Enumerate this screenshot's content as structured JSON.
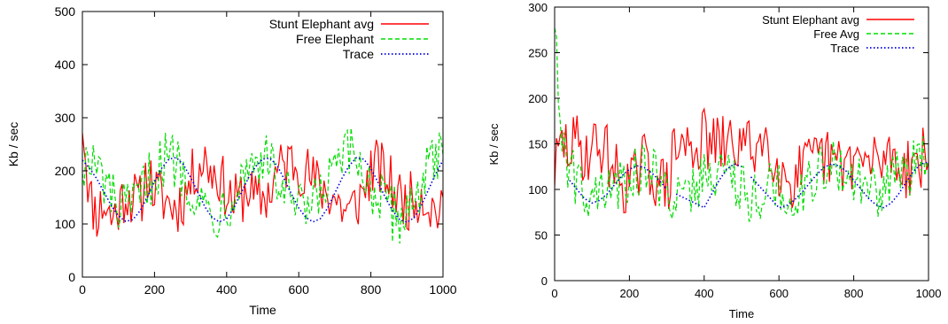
{
  "chart_data": [
    {
      "type": "line",
      "title": "",
      "xlabel": "Time",
      "ylabel": "Kb / sec",
      "xlim": [
        0,
        1000
      ],
      "ylim": [
        0,
        500
      ],
      "xticks": [
        0,
        200,
        400,
        600,
        800,
        1000
      ],
      "yticks": [
        0,
        100,
        200,
        300,
        400,
        500
      ],
      "grid": false,
      "legend_position": "top-right",
      "series": [
        {
          "name": "Stunt Elephant avg",
          "color": "#ff0000",
          "style": "solid",
          "x": [
            0,
            20,
            40,
            60,
            80,
            100,
            120,
            140,
            160,
            180,
            200,
            220,
            240,
            260,
            280,
            300,
            320,
            340,
            360,
            380,
            400,
            420,
            440,
            460,
            480,
            500,
            520,
            540,
            560,
            580,
            600,
            620,
            640,
            660,
            680,
            700,
            720,
            740,
            760,
            780,
            800,
            820,
            840,
            860,
            880,
            900,
            920,
            940,
            960,
            980,
            1000
          ],
          "y": [
            300,
            150,
            120,
            140,
            110,
            130,
            160,
            150,
            140,
            200,
            160,
            150,
            140,
            130,
            150,
            180,
            210,
            220,
            200,
            190,
            160,
            140,
            150,
            170,
            140,
            150,
            160,
            200,
            210,
            220,
            210,
            200,
            180,
            170,
            160,
            150,
            130,
            120,
            140,
            160,
            200,
            210,
            190,
            170,
            150,
            140,
            150,
            160,
            140,
            120,
            150
          ],
          "spread": 55
        },
        {
          "name": "Free Elephant",
          "color": "#00dd00",
          "style": "dashed",
          "x": [
            0,
            20,
            40,
            60,
            80,
            100,
            120,
            140,
            160,
            180,
            200,
            220,
            240,
            260,
            280,
            300,
            320,
            340,
            360,
            380,
            400,
            420,
            440,
            460,
            480,
            500,
            520,
            540,
            560,
            580,
            600,
            620,
            640,
            660,
            680,
            700,
            720,
            740,
            760,
            780,
            800,
            820,
            840,
            860,
            880,
            900,
            920,
            940,
            960,
            980,
            1000
          ],
          "y": [
            220,
            210,
            200,
            180,
            150,
            130,
            120,
            130,
            150,
            180,
            200,
            215,
            225,
            220,
            200,
            175,
            150,
            130,
            120,
            125,
            140,
            165,
            190,
            210,
            222,
            225,
            210,
            185,
            160,
            140,
            125,
            120,
            130,
            150,
            175,
            200,
            220,
            228,
            220,
            200,
            170,
            150,
            130,
            120,
            115,
            125,
            150,
            180,
            200,
            215,
            230
          ],
          "spread": 55
        },
        {
          "name": "Trace",
          "color": "#0000dd",
          "style": "dotted",
          "x": [
            0,
            20,
            40,
            60,
            80,
            100,
            120,
            140,
            160,
            180,
            200,
            220,
            240,
            260,
            280,
            300,
            320,
            340,
            360,
            380,
            400,
            420,
            440,
            460,
            480,
            500,
            520,
            540,
            560,
            580,
            600,
            620,
            640,
            660,
            680,
            700,
            720,
            740,
            760,
            780,
            800,
            820,
            840,
            860,
            880,
            900,
            920,
            940,
            960,
            980,
            1000
          ],
          "y": [
            220,
            205,
            185,
            160,
            135,
            115,
            105,
            108,
            125,
            150,
            180,
            205,
            222,
            225,
            212,
            188,
            160,
            132,
            112,
            104,
            110,
            130,
            158,
            186,
            208,
            222,
            224,
            210,
            184,
            156,
            130,
            112,
            104,
            110,
            130,
            158,
            186,
            210,
            225,
            222,
            205,
            178,
            150,
            125,
            108,
            103,
            112,
            135,
            165,
            195,
            220
          ],
          "spread": 0
        }
      ]
    },
    {
      "type": "line",
      "title": "",
      "xlabel": "Time",
      "ylabel": "Kb / sec",
      "xlim": [
        0,
        1000
      ],
      "ylim": [
        0,
        300
      ],
      "xticks": [
        0,
        200,
        400,
        600,
        800,
        1000
      ],
      "yticks": [
        0,
        50,
        100,
        150,
        200,
        250,
        300
      ],
      "grid": false,
      "legend_position": "top-right",
      "series": [
        {
          "name": "Stunt Elephant avg",
          "color": "#ff0000",
          "style": "solid",
          "x": [
            0,
            20,
            40,
            60,
            80,
            100,
            120,
            140,
            160,
            180,
            200,
            220,
            240,
            260,
            280,
            300,
            320,
            340,
            360,
            380,
            400,
            420,
            440,
            460,
            480,
            500,
            520,
            540,
            560,
            580,
            600,
            620,
            640,
            660,
            680,
            700,
            720,
            740,
            760,
            780,
            800,
            820,
            840,
            860,
            880,
            900,
            920,
            940,
            960,
            980,
            1000
          ],
          "y": [
            120,
            150,
            145,
            150,
            140,
            145,
            150,
            140,
            120,
            110,
            105,
            115,
            130,
            120,
            110,
            100,
            140,
            150,
            145,
            150,
            155,
            150,
            145,
            150,
            150,
            150,
            145,
            150,
            155,
            150,
            120,
            115,
            110,
            120,
            125,
            130,
            135,
            130,
            125,
            130,
            135,
            130,
            125,
            130,
            135,
            140,
            130,
            125,
            130,
            135,
            130
          ],
          "spread": 35
        },
        {
          "name": "Free Avg",
          "color": "#00dd00",
          "style": "dashed",
          "x": [
            0,
            20,
            40,
            60,
            80,
            100,
            120,
            140,
            160,
            180,
            200,
            220,
            240,
            260,
            280,
            300,
            320,
            340,
            360,
            380,
            400,
            420,
            440,
            460,
            480,
            500,
            520,
            540,
            560,
            580,
            600,
            620,
            640,
            660,
            680,
            700,
            720,
            740,
            760,
            780,
            800,
            820,
            840,
            860,
            880,
            900,
            920,
            940,
            960,
            980,
            1000
          ],
          "y": [
            290,
            150,
            120,
            110,
            105,
            95,
            90,
            95,
            100,
            110,
            115,
            120,
            125,
            120,
            110,
            100,
            95,
            90,
            95,
            105,
            115,
            120,
            125,
            118,
            110,
            100,
            95,
            95,
            98,
            100,
            100,
            95,
            95,
            100,
            110,
            118,
            125,
            128,
            125,
            120,
            112,
            105,
            98,
            95,
            100,
            108,
            115,
            120,
            125,
            128,
            130
          ],
          "spread": 30
        },
        {
          "name": "Trace",
          "color": "#0000dd",
          "style": "dotted",
          "x": [
            40,
            60,
            80,
            100,
            120,
            140,
            160,
            180,
            200,
            220,
            240,
            260,
            280,
            300,
            400,
            420,
            440,
            460,
            480,
            500,
            600,
            620,
            640,
            660,
            680,
            700,
            720,
            740,
            760,
            780,
            800,
            820,
            840,
            860,
            880,
            900,
            920,
            940,
            960,
            980,
            1000
          ],
          "y": [
            110,
            100,
            90,
            85,
            88,
            95,
            105,
            115,
            122,
            126,
            124,
            118,
            110,
            100,
            80,
            95,
            110,
            122,
            128,
            125,
            80,
            82,
            88,
            96,
            106,
            116,
            124,
            128,
            126,
            120,
            110,
            100,
            90,
            83,
            80,
            85,
            95,
            108,
            120,
            128,
            130
          ],
          "spread": 0
        }
      ]
    }
  ]
}
